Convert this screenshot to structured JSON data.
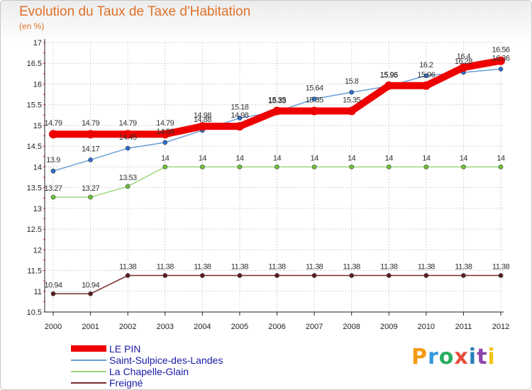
{
  "title": "Evolution du Taux de Taxe d'Habitation",
  "subtitle": "(en %)",
  "logo": {
    "letters": [
      "P",
      "r",
      "o",
      "x",
      "i",
      "t",
      "i"
    ],
    "colors": [
      "#f39c12",
      "#3498db",
      "#27ae60",
      "#e74c3c",
      "#2980b9",
      "#8e44ad",
      "#f1c40f"
    ]
  },
  "chart_data": {
    "type": "line",
    "title": "Evolution du Taux de Taxe d'Habitation",
    "ylabel": "(en %)",
    "xlabel": "",
    "ylim": [
      10.5,
      17
    ],
    "yticks": [
      "10.5",
      "11",
      "11.5",
      "12",
      "12.5",
      "13",
      "13.5",
      "14",
      "14.5",
      "15",
      "15.5",
      "16",
      "16.5",
      "17"
    ],
    "x": [
      "2000",
      "2001",
      "2002",
      "2003",
      "2004",
      "2005",
      "2006",
      "2007",
      "2008",
      "2009",
      "2010",
      "2011",
      "2012"
    ],
    "grid": true,
    "series": [
      {
        "name": "LE PIN",
        "color": "#ee0000",
        "marker_color": "#2e6fd1",
        "values": [
          14.79,
          14.79,
          14.79,
          14.79,
          14.98,
          14.98,
          15.35,
          15.35,
          15.35,
          15.96,
          15.96,
          16.4,
          16.56
        ],
        "labels": [
          "14.79",
          "14.79",
          "14.79",
          "14.79",
          "14.98",
          "14.98",
          "15.35",
          "15.35",
          "15.35",
          "15.96",
          "15.96",
          "16.4",
          "16.56"
        ]
      },
      {
        "name": "Saint-Sulpice-des-Landes",
        "color": "#6a9fd8",
        "marker_color": "#2e6fd1",
        "values": [
          13.9,
          14.17,
          14.45,
          14.59,
          14.88,
          15.18,
          15.33,
          15.64,
          15.8,
          15.95,
          16.2,
          16.28,
          16.36
        ],
        "labels": [
          "13.9",
          "14.17",
          "14.45",
          "14.59",
          "14.88",
          "15.18",
          "15.33",
          "15.64",
          "15.8",
          "15.95",
          "16.2",
          "16.28",
          "16.36"
        ]
      },
      {
        "name": "La Chapelle-Glain",
        "color": "#9ed67a",
        "marker_color": "#6ec43a",
        "values": [
          13.27,
          13.27,
          13.53,
          14,
          14,
          14,
          14,
          14,
          14,
          14,
          14,
          14,
          14
        ],
        "labels": [
          "13.27",
          "13.27",
          "13.53",
          "14",
          "14",
          "14",
          "14",
          "14",
          "14",
          "14",
          "14",
          "14",
          "14"
        ]
      },
      {
        "name": "Freigné",
        "color": "#7a2a2a",
        "marker_color": "#5c1c1c",
        "values": [
          10.94,
          10.94,
          11.38,
          11.38,
          11.38,
          11.38,
          11.38,
          11.38,
          11.38,
          11.38,
          11.38,
          11.38,
          11.38
        ],
        "labels": [
          "10.94",
          "10.94",
          "11.38",
          "11.38",
          "11.38",
          "11.38",
          "11.38",
          "11.38",
          "11.38",
          "11.38",
          "11.38",
          "11.38",
          "11.38"
        ]
      }
    ]
  }
}
